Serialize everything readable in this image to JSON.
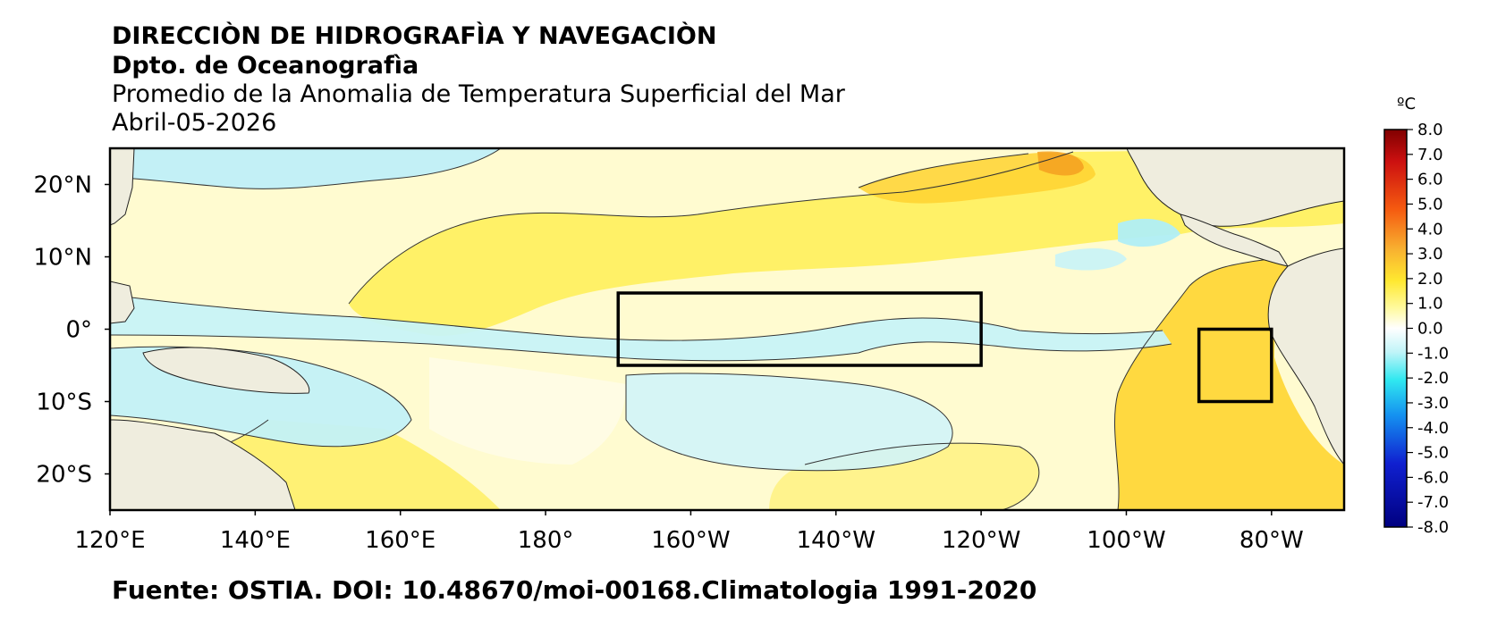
{
  "header": {
    "line1": "DIRECCIÒN DE HIDROGRAFÌA Y NAVEGACIÒN",
    "line2": "Dpto. de Oceanografìa",
    "line3": "Promedio de la Anomalia de Temperatura Superficial del Mar",
    "line4": "Abril-05-2026"
  },
  "source": "Fuente: OSTIA. DOI: 10.48670/moi-00168.Climatologia 1991-2020",
  "map": {
    "lon_range": [
      120,
      290
    ],
    "lat_range": [
      -25,
      25
    ],
    "lon_ticks": [
      {
        "lon": 120,
        "label": "120°E"
      },
      {
        "lon": 140,
        "label": "140°E"
      },
      {
        "lon": 160,
        "label": "160°E"
      },
      {
        "lon": 180,
        "label": "180°"
      },
      {
        "lon": 200,
        "label": "160°W"
      },
      {
        "lon": 220,
        "label": "140°W"
      },
      {
        "lon": 240,
        "label": "120°W"
      },
      {
        "lon": 260,
        "label": "100°W"
      },
      {
        "lon": 280,
        "label": "80°W"
      }
    ],
    "lat_ticks": [
      {
        "lat": 20,
        "label": "20°N"
      },
      {
        "lat": 10,
        "label": "10°N"
      },
      {
        "lat": 0,
        "label": "0°"
      },
      {
        "lat": -10,
        "label": "10°S"
      },
      {
        "lat": -20,
        "label": "20°S"
      }
    ],
    "boxes": [
      {
        "name": "nino-3-4-box",
        "lon": [
          190,
          240
        ],
        "lat": [
          -5,
          5
        ]
      },
      {
        "name": "nino-1-2-box",
        "lon": [
          270,
          280
        ],
        "lat": [
          -10,
          0
        ]
      }
    ],
    "land_color": "#efedde",
    "ocean_base_color": "#fffbd0"
  },
  "colorbar": {
    "unit": "ºC",
    "ticks": [
      "8.0",
      "7.0",
      "6.0",
      "5.0",
      "4.0",
      "3.0",
      "2.0",
      "1.0",
      "0.0",
      "-1.0",
      "-2.0",
      "-3.0",
      "-4.0",
      "-5.0",
      "-6.0",
      "-7.0",
      "-8.0"
    ]
  }
}
